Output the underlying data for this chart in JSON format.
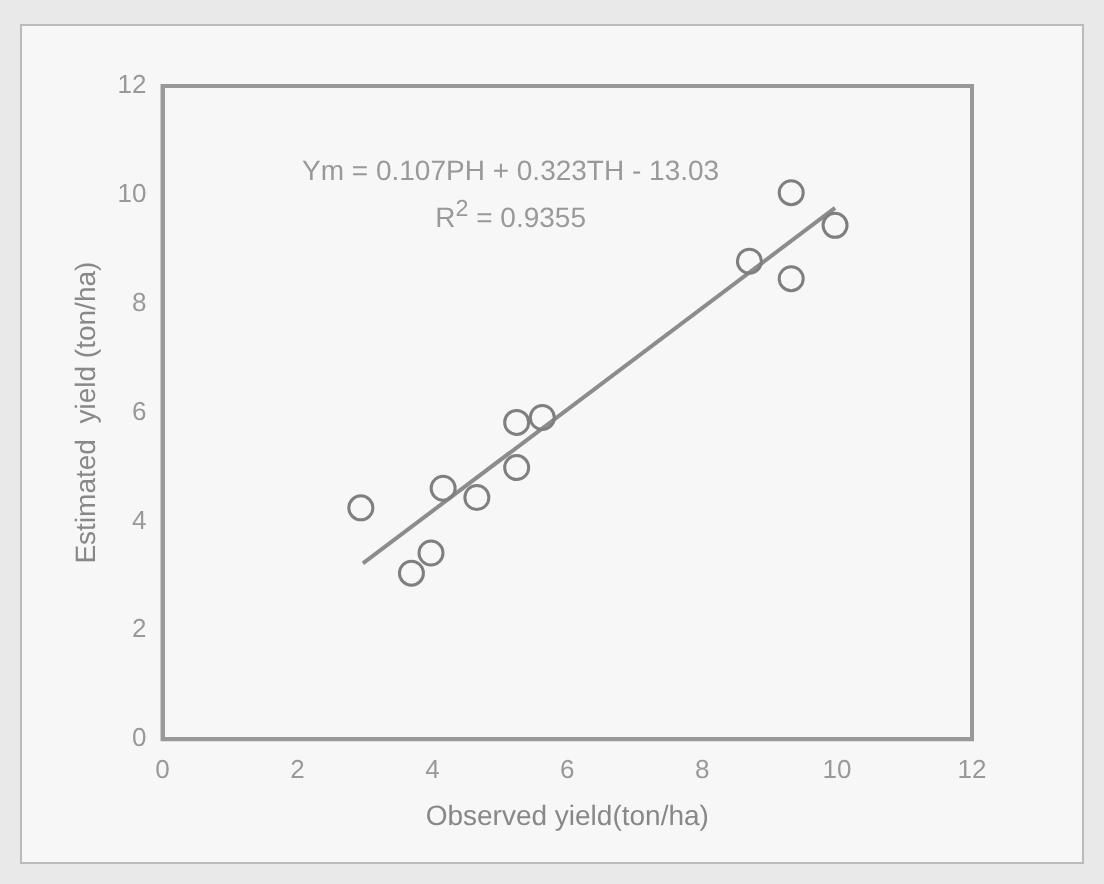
{
  "chart_data": {
    "type": "scatter",
    "xlabel": "Observed yield(ton/ha)",
    "ylabel": "Estimated  yield (ton/ha)",
    "xlim": [
      0,
      12
    ],
    "ylim": [
      0,
      12
    ],
    "xticks": [
      0,
      2,
      4,
      6,
      8,
      10,
      12
    ],
    "yticks": [
      0,
      2,
      4,
      6,
      8,
      10,
      12
    ],
    "grid": false,
    "legend": false,
    "marker": "circle",
    "annotations": [
      "Ym = 0.107PH + 0.323TH - 13.03",
      "R$^{2}$ = 0.9355"
    ],
    "series": [
      {
        "color": "#7f7f7f",
        "x": [
          2.94,
          3.69,
          3.98,
          4.16,
          4.66,
          5.25,
          5.25,
          5.63,
          8.7,
          9.32,
          9.32,
          9.97
        ],
        "values": [
          4.25,
          3.05,
          3.42,
          4.61,
          4.44,
          5.82,
          4.99,
          5.91,
          8.78,
          10.04,
          8.46,
          9.44
        ]
      },
      {
        "type": "line",
        "marker": "none",
        "color": "#8c8c8c",
        "x": [
          2.97,
          9.97
        ],
        "values": [
          3.23,
          9.76
        ]
      }
    ]
  }
}
